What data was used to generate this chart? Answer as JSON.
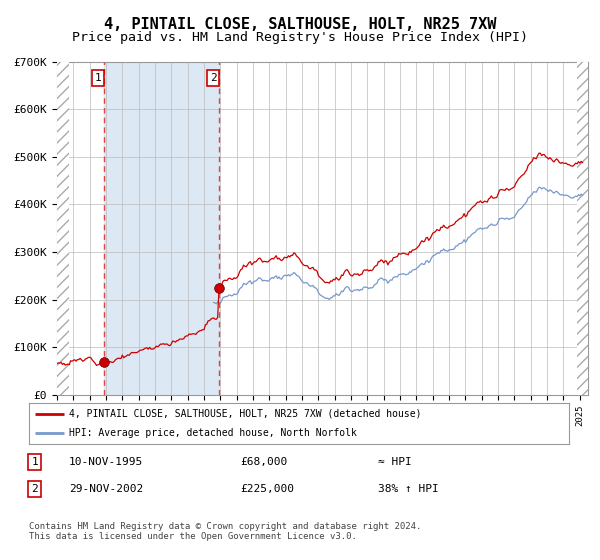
{
  "title": "4, PINTAIL CLOSE, SALTHOUSE, HOLT, NR25 7XW",
  "subtitle": "Price paid vs. HM Land Registry's House Price Index (HPI)",
  "legend_line1": "4, PINTAIL CLOSE, SALTHOUSE, HOLT, NR25 7XW (detached house)",
  "legend_line2": "HPI: Average price, detached house, North Norfolk",
  "footnote": "Contains HM Land Registry data © Crown copyright and database right 2024.\nThis data is licensed under the Open Government Licence v3.0.",
  "table_rows": [
    {
      "num": "1",
      "date": "10-NOV-1995",
      "price": "£68,000",
      "change": "≈ HPI"
    },
    {
      "num": "2",
      "date": "29-NOV-2002",
      "price": "£225,000",
      "change": "38% ↑ HPI"
    }
  ],
  "sale1_year": 1995.87,
  "sale1_price": 68000,
  "sale2_year": 2002.91,
  "sale2_price": 225000,
  "background_color": "#ffffff",
  "plot_bg_color": "#ffffff",
  "shade_color": "#dde8f5",
  "grid_color": "#bbbbbb",
  "red_line_color": "#cc0000",
  "blue_line_color": "#7799cc",
  "dashed_line_color": "#dd4444",
  "ylim": [
    0,
    700000
  ],
  "yticks": [
    0,
    100000,
    200000,
    300000,
    400000,
    500000,
    600000,
    700000
  ],
  "ytick_labels": [
    "£0",
    "£100K",
    "£200K",
    "£300K",
    "£400K",
    "£500K",
    "£600K",
    "£700K"
  ],
  "xlim_start": 1993.0,
  "xlim_end": 2025.5,
  "title_fontsize": 11,
  "subtitle_fontsize": 9.5,
  "axis_fontsize": 8,
  "sale1_vline_x": 1995.87,
  "sale2_vline_x": 2002.91
}
